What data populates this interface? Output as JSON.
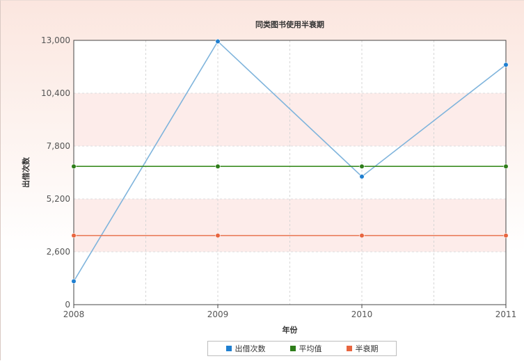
{
  "chart_data": {
    "type": "line",
    "title": "同类图书使用半衰期",
    "xlabel": "年份",
    "ylabel": "出借次数",
    "categories": [
      "2008",
      "2009",
      "2010",
      "2011"
    ],
    "ylim": [
      0,
      13000
    ],
    "yticks": [
      "0",
      "2,600",
      "5,200",
      "7,800",
      "10,400",
      "13,000"
    ],
    "ytick_values": [
      0,
      2600,
      5200,
      7800,
      10400,
      13000
    ],
    "grid": true,
    "legend_position": "bottom-center",
    "series": [
      {
        "name": "出借次数",
        "values": [
          1150,
          12950,
          6300,
          11800
        ],
        "color": "#1f7fd0",
        "line_color": "#7fb4dc"
      },
      {
        "name": "平均值",
        "values": [
          6800,
          6800,
          6800,
          6800
        ],
        "color": "#2e7d1a",
        "line_color": "#3a8c22"
      },
      {
        "name": "半衰期",
        "values": [
          3400,
          3400,
          3400,
          3400
        ],
        "color": "#e8653f",
        "line_color": "#e8734f"
      }
    ]
  }
}
